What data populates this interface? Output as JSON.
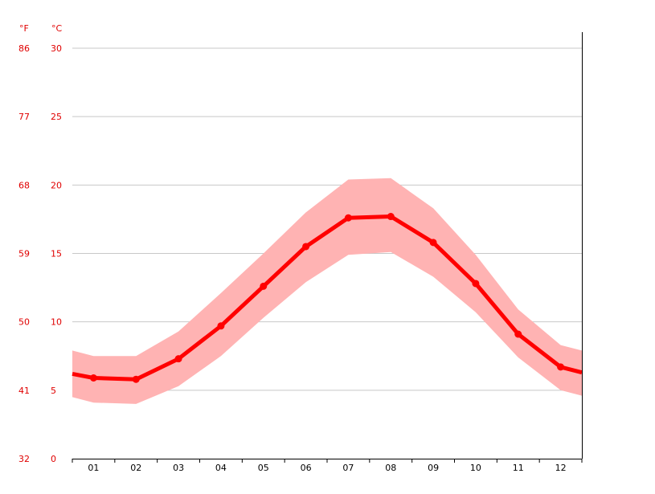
{
  "chart_data": {
    "type": "line",
    "title": "",
    "xlabel": "",
    "ylabel": "",
    "unit_left": "°F",
    "unit_right": "°C",
    "categories": [
      "01",
      "02",
      "03",
      "04",
      "05",
      "06",
      "07",
      "08",
      "09",
      "10",
      "11",
      "12"
    ],
    "x_range": [
      0.5,
      12.5
    ],
    "ylim": [
      0,
      30
    ],
    "yticks_c": [
      "0",
      "5",
      "10",
      "15",
      "20",
      "25",
      "30"
    ],
    "yticks_f": [
      "32",
      "41",
      "50",
      "59",
      "68",
      "77",
      "86"
    ],
    "grid": true,
    "legend": "none",
    "series": [
      {
        "values": [
          5.9,
          5.8,
          7.3,
          9.7,
          12.6,
          15.5,
          17.6,
          17.7,
          15.8,
          12.8,
          9.1,
          6.7
        ],
        "range_low": [
          4.1,
          4.0,
          5.3,
          7.5,
          10.3,
          12.9,
          14.9,
          15.1,
          13.3,
          10.7,
          7.4,
          5.0
        ],
        "range_high": [
          7.5,
          7.5,
          9.3,
          12.1,
          15.0,
          18.0,
          20.4,
          20.5,
          18.3,
          14.9,
          10.9,
          8.3
        ],
        "color": "#ff0000",
        "band_color": "#ffb3b3"
      }
    ],
    "left_edge": {
      "value": 6.2,
      "low": 4.5,
      "high": 7.9
    },
    "right_edge": {
      "value": 6.3,
      "low": 4.6,
      "high": 7.9
    }
  }
}
